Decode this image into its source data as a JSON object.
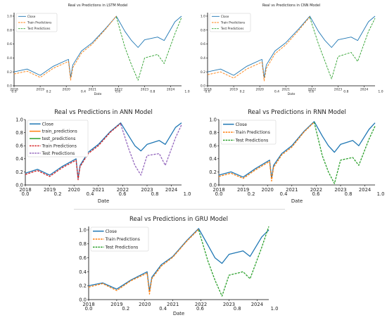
{
  "figure": {
    "time_ticks": [
      "2018",
      "2019",
      "2020",
      "2021",
      "2022",
      "2023",
      "2024"
    ],
    "frac_ticks": [
      "0.0",
      "0.2",
      "0.4",
      "0.6",
      "0.8",
      "1.0"
    ],
    "y_ticks": [
      "0.0",
      "0.2",
      "0.4",
      "0.6",
      "0.8",
      "1.0"
    ],
    "colors": {
      "close": "#1f77b4",
      "train": "#ff7f0e",
      "test": "#2ca02c",
      "red": "#d62728",
      "purple": "#9467bd"
    }
  },
  "chart_data": [
    {
      "type": "line",
      "title": "Real vs Predictions in LSTM Model",
      "xlabel": "Date",
      "ylabel": "",
      "ylim": [
        0.0,
        1.05
      ],
      "xlim": [
        "2018-01",
        "2024-06"
      ],
      "legend": "upper-left",
      "legend_entries": [
        {
          "label": "Close",
          "color": "#1f77b4",
          "dash": "solid"
        },
        {
          "label": "Train Predictions",
          "color": "#ff7f0e",
          "dash": "dashed"
        },
        {
          "label": "Test Predictions",
          "color": "#2ca02c",
          "dash": "dashed"
        }
      ],
      "series": [
        {
          "name": "Close",
          "x": [
            "2018-01",
            "2018-07",
            "2019-01",
            "2019-07",
            "2020-02",
            "2020-03",
            "2020-04",
            "2020-08",
            "2021-01",
            "2021-07",
            "2021-12",
            "2022-04",
            "2022-07",
            "2022-10",
            "2023-01",
            "2023-07",
            "2023-10",
            "2024-03",
            "2024-06"
          ],
          "values": [
            0.2,
            0.24,
            0.15,
            0.28,
            0.38,
            0.12,
            0.3,
            0.5,
            0.62,
            0.82,
            1.0,
            0.78,
            0.65,
            0.55,
            0.66,
            0.7,
            0.65,
            0.92,
            1.0
          ]
        },
        {
          "name": "Train Predictions",
          "x": [
            "2018-01",
            "2018-07",
            "2019-01",
            "2019-07",
            "2020-02",
            "2020-03",
            "2020-04",
            "2020-08",
            "2021-01",
            "2021-07",
            "2021-12"
          ],
          "values": [
            0.17,
            0.21,
            0.12,
            0.25,
            0.35,
            0.08,
            0.26,
            0.47,
            0.6,
            0.81,
            1.0
          ]
        },
        {
          "name": "Test Predictions",
          "x": [
            "2021-12",
            "2022-04",
            "2022-07",
            "2022-10",
            "2023-01",
            "2023-07",
            "2023-10",
            "2024-03",
            "2024-06"
          ],
          "values": [
            0.99,
            0.55,
            0.3,
            0.08,
            0.4,
            0.45,
            0.32,
            0.75,
            0.98
          ]
        }
      ]
    },
    {
      "type": "line",
      "title": "Real vs Predictions in CNN Model",
      "xlabel": "Date",
      "ylabel": "",
      "ylim": [
        0.0,
        1.05
      ],
      "xlim": [
        "2018-01",
        "2024-06"
      ],
      "legend": "upper-left",
      "legend_entries": [
        {
          "label": "Close",
          "color": "#1f77b4",
          "dash": "solid"
        },
        {
          "label": "Train Predictions",
          "color": "#ff7f0e",
          "dash": "dashed"
        },
        {
          "label": "Test Predictions",
          "color": "#2ca02c",
          "dash": "dashed"
        }
      ],
      "series": [
        {
          "name": "Close",
          "x": [
            "2018-01",
            "2018-07",
            "2019-01",
            "2019-07",
            "2020-02",
            "2020-03",
            "2020-04",
            "2020-08",
            "2021-01",
            "2021-07",
            "2021-12",
            "2022-04",
            "2022-07",
            "2022-10",
            "2023-01",
            "2023-07",
            "2023-10",
            "2024-03",
            "2024-06"
          ],
          "values": [
            0.2,
            0.24,
            0.15,
            0.28,
            0.38,
            0.12,
            0.3,
            0.5,
            0.62,
            0.82,
            1.0,
            0.78,
            0.65,
            0.55,
            0.66,
            0.7,
            0.65,
            0.92,
            1.0
          ]
        },
        {
          "name": "Train Predictions",
          "x": [
            "2018-01",
            "2018-07",
            "2019-01",
            "2019-07",
            "2020-02",
            "2020-03",
            "2020-04",
            "2020-08",
            "2021-01",
            "2021-07",
            "2021-12"
          ],
          "values": [
            0.16,
            0.2,
            0.11,
            0.24,
            0.34,
            0.07,
            0.25,
            0.46,
            0.59,
            0.8,
            0.99
          ]
        },
        {
          "name": "Test Predictions",
          "x": [
            "2021-12",
            "2022-04",
            "2022-07",
            "2022-10",
            "2023-01",
            "2023-07",
            "2023-10",
            "2024-03",
            "2024-06"
          ],
          "values": [
            0.98,
            0.6,
            0.35,
            0.1,
            0.42,
            0.48,
            0.35,
            0.78,
            0.97
          ]
        }
      ]
    },
    {
      "type": "line",
      "title": "Real vs Predictions in ANN Model",
      "xlabel": "Date",
      "ylabel": "",
      "ylim": [
        0.0,
        1.0
      ],
      "xlim": [
        "2018-01",
        "2024-06"
      ],
      "legend": "upper-left",
      "legend_entries": [
        {
          "label": "Close",
          "color": "#1f77b4",
          "dash": "solid"
        },
        {
          "label": "train_predictions",
          "color": "#ff7f0e",
          "dash": "solid"
        },
        {
          "label": "test_predictions",
          "color": "#2ca02c",
          "dash": "solid"
        },
        {
          "label": "Train Predictions",
          "color": "#d62728",
          "dash": "dashed"
        },
        {
          "label": "Test Predictions",
          "color": "#9467bd",
          "dash": "dashed"
        }
      ],
      "series": [
        {
          "name": "Close",
          "x": [
            "2018-01",
            "2018-07",
            "2019-01",
            "2019-07",
            "2020-02",
            "2020-03",
            "2020-04",
            "2020-08",
            "2021-01",
            "2021-07",
            "2021-12",
            "2022-04",
            "2022-07",
            "2022-10",
            "2023-01",
            "2023-07",
            "2023-10",
            "2024-03",
            "2024-06"
          ],
          "values": [
            0.18,
            0.24,
            0.15,
            0.28,
            0.4,
            0.1,
            0.3,
            0.5,
            0.62,
            0.82,
            0.95,
            0.75,
            0.6,
            0.52,
            0.62,
            0.68,
            0.62,
            0.88,
            0.95
          ]
        },
        {
          "name": "Train Predictions",
          "x": [
            "2018-01",
            "2018-07",
            "2019-01",
            "2019-07",
            "2020-02",
            "2020-03",
            "2020-04",
            "2020-08",
            "2021-01",
            "2021-07",
            "2021-12"
          ],
          "values": [
            0.16,
            0.22,
            0.13,
            0.26,
            0.38,
            0.08,
            0.28,
            0.48,
            0.6,
            0.81,
            0.94
          ]
        },
        {
          "name": "Test Predictions",
          "x": [
            "2021-12",
            "2022-04",
            "2022-07",
            "2022-10",
            "2023-01",
            "2023-07",
            "2023-10",
            "2024-03",
            "2024-06"
          ],
          "values": [
            0.93,
            0.55,
            0.3,
            0.15,
            0.45,
            0.48,
            0.3,
            0.72,
            0.92
          ]
        }
      ]
    },
    {
      "type": "line",
      "title": "Real vs Predictions in RNN Model",
      "xlabel": "Date",
      "ylabel": "",
      "ylim": [
        0.0,
        1.0
      ],
      "xlim": [
        "2018-01",
        "2024-06"
      ],
      "legend": "upper-left",
      "legend_entries": [
        {
          "label": "Close",
          "color": "#1f77b4",
          "dash": "solid"
        },
        {
          "label": "Train Predictions",
          "color": "#ff7f0e",
          "dash": "dashed"
        },
        {
          "label": "Test Predictions",
          "color": "#2ca02c",
          "dash": "dashed"
        }
      ],
      "series": [
        {
          "name": "Close",
          "x": [
            "2018-01",
            "2018-07",
            "2019-01",
            "2019-07",
            "2020-02",
            "2020-03",
            "2020-04",
            "2020-08",
            "2021-01",
            "2021-07",
            "2021-12",
            "2022-04",
            "2022-07",
            "2022-10",
            "2023-01",
            "2023-07",
            "2023-10",
            "2024-03",
            "2024-06"
          ],
          "values": [
            0.15,
            0.2,
            0.12,
            0.25,
            0.38,
            0.1,
            0.3,
            0.48,
            0.6,
            0.82,
            0.97,
            0.75,
            0.6,
            0.5,
            0.62,
            0.68,
            0.6,
            0.85,
            0.95
          ]
        },
        {
          "name": "Train Predictions",
          "x": [
            "2018-01",
            "2018-07",
            "2019-01",
            "2019-07",
            "2020-02",
            "2020-03",
            "2020-04",
            "2020-08",
            "2021-01",
            "2021-07",
            "2021-12"
          ],
          "values": [
            0.13,
            0.18,
            0.1,
            0.23,
            0.36,
            0.06,
            0.27,
            0.46,
            0.58,
            0.81,
            0.96
          ]
        },
        {
          "name": "Test Predictions",
          "x": [
            "2021-12",
            "2022-04",
            "2022-07",
            "2022-10",
            "2023-01",
            "2023-07",
            "2023-10",
            "2024-03",
            "2024-06"
          ],
          "values": [
            0.96,
            0.45,
            0.2,
            0.02,
            0.38,
            0.42,
            0.3,
            0.7,
            0.9
          ]
        }
      ]
    },
    {
      "type": "line",
      "title": "Real vs Predictions in GRU Model",
      "xlabel": "Date",
      "ylabel": "",
      "ylim": [
        0.0,
        1.05
      ],
      "xlim": [
        "2018-01",
        "2024-06"
      ],
      "legend": "upper-left",
      "legend_entries": [
        {
          "label": "Close",
          "color": "#1f77b4",
          "dash": "solid"
        },
        {
          "label": "Train Predictions",
          "color": "#ff7f0e",
          "dash": "dashed"
        },
        {
          "label": "Test Predictions",
          "color": "#2ca02c",
          "dash": "dashed"
        }
      ],
      "series": [
        {
          "name": "Close",
          "x": [
            "2018-01",
            "2018-07",
            "2019-01",
            "2019-07",
            "2020-02",
            "2020-03",
            "2020-04",
            "2020-08",
            "2021-01",
            "2021-07",
            "2021-12",
            "2022-04",
            "2022-07",
            "2022-10",
            "2023-01",
            "2023-07",
            "2023-10",
            "2024-03",
            "2024-06"
          ],
          "values": [
            0.2,
            0.24,
            0.15,
            0.28,
            0.4,
            0.12,
            0.32,
            0.5,
            0.62,
            0.85,
            1.02,
            0.78,
            0.6,
            0.52,
            0.65,
            0.7,
            0.62,
            0.9,
            1.0
          ]
        },
        {
          "name": "Train Predictions",
          "x": [
            "2018-01",
            "2018-07",
            "2019-01",
            "2019-07",
            "2020-02",
            "2020-03",
            "2020-04",
            "2020-08",
            "2021-01",
            "2021-07",
            "2021-12"
          ],
          "values": [
            0.18,
            0.23,
            0.13,
            0.27,
            0.38,
            0.08,
            0.3,
            0.48,
            0.61,
            0.84,
            1.01
          ]
        },
        {
          "name": "Test Predictions",
          "x": [
            "2021-12",
            "2022-04",
            "2022-07",
            "2022-10",
            "2023-01",
            "2023-07",
            "2023-10",
            "2024-03",
            "2024-06"
          ],
          "values": [
            1.0,
            0.55,
            0.28,
            0.05,
            0.35,
            0.4,
            0.3,
            0.75,
            1.05
          ]
        }
      ]
    }
  ]
}
